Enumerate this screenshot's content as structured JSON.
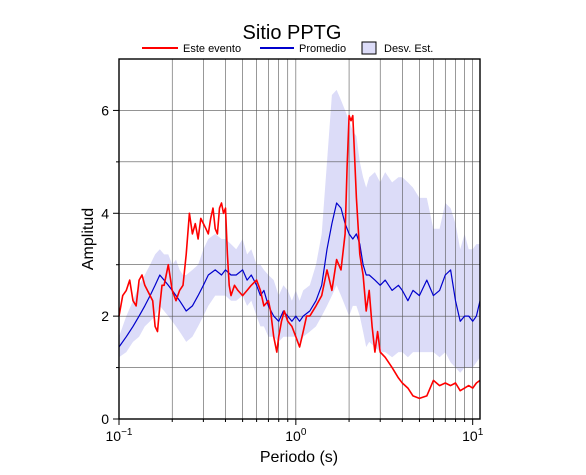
{
  "chart_data": {
    "type": "line",
    "title": "Sitio PPTG",
    "xlabel": "Periodo (s)",
    "ylabel": "Amplitud",
    "x_scale": "log",
    "xlim": [
      0.1,
      11
    ],
    "ylim": [
      0,
      7
    ],
    "grid": true,
    "legend_position": "top",
    "x_ticks": [
      {
        "value": 0.1,
        "base": "10",
        "exp": "−1"
      },
      {
        "value": 1,
        "base": "10",
        "exp": "0"
      },
      {
        "value": 10,
        "base": "10",
        "exp": "1"
      }
    ],
    "y_ticks": [
      0,
      2,
      4,
      6
    ],
    "legend": {
      "este": "Este evento",
      "promedio": "Promedio",
      "desv": "Desv. Est."
    },
    "colors": {
      "este": "#ff0000",
      "promedio": "#0000cc",
      "desv": "#dcdcf8",
      "grid": "#555555"
    },
    "series": [
      {
        "name": "Este evento",
        "x": [
          0.1,
          0.105,
          0.11,
          0.115,
          0.12,
          0.125,
          0.13,
          0.135,
          0.14,
          0.15,
          0.155,
          0.16,
          0.165,
          0.17,
          0.175,
          0.18,
          0.19,
          0.2,
          0.21,
          0.22,
          0.23,
          0.24,
          0.25,
          0.26,
          0.27,
          0.28,
          0.29,
          0.3,
          0.31,
          0.32,
          0.33,
          0.34,
          0.35,
          0.36,
          0.37,
          0.38,
          0.39,
          0.4,
          0.41,
          0.42,
          0.43,
          0.45,
          0.47,
          0.5,
          0.53,
          0.56,
          0.6,
          0.63,
          0.66,
          0.7,
          0.72,
          0.75,
          0.78,
          0.8,
          0.83,
          0.86,
          0.9,
          0.95,
          1.0,
          1.05,
          1.1,
          1.15,
          1.2,
          1.3,
          1.4,
          1.5,
          1.6,
          1.7,
          1.8,
          1.9,
          1.95,
          2.0,
          2.05,
          2.1,
          2.15,
          2.2,
          2.3,
          2.4,
          2.5,
          2.6,
          2.7,
          2.8,
          2.9,
          3.0,
          3.2,
          3.5,
          3.8,
          4.0,
          4.3,
          4.6,
          5.0,
          5.5,
          6.0,
          6.5,
          7.0,
          7.5,
          8.0,
          8.5,
          9.0,
          9.5,
          10.0,
          10.5,
          11.0
        ],
        "values": [
          2.0,
          2.4,
          2.5,
          2.7,
          2.3,
          2.2,
          2.7,
          2.8,
          2.6,
          2.4,
          2.3,
          1.8,
          1.7,
          2.2,
          2.6,
          2.6,
          3.0,
          2.5,
          2.3,
          2.5,
          2.6,
          3.2,
          4.0,
          3.6,
          3.8,
          3.5,
          3.9,
          3.8,
          3.7,
          3.6,
          3.9,
          4.1,
          3.7,
          3.6,
          4.1,
          4.2,
          4.0,
          4.1,
          3.2,
          2.6,
          2.4,
          2.6,
          2.5,
          2.4,
          2.5,
          2.6,
          2.7,
          2.5,
          2.2,
          2.3,
          2.1,
          1.6,
          1.3,
          1.6,
          1.9,
          2.1,
          1.9,
          1.8,
          1.6,
          1.4,
          1.7,
          2.0,
          2.0,
          2.2,
          2.4,
          2.9,
          2.5,
          3.1,
          2.9,
          3.6,
          4.9,
          5.9,
          5.8,
          5.9,
          5.1,
          4.3,
          3.2,
          2.8,
          2.1,
          2.5,
          1.8,
          1.3,
          1.7,
          1.3,
          1.2,
          1.0,
          0.8,
          0.7,
          0.6,
          0.45,
          0.4,
          0.45,
          0.75,
          0.65,
          0.7,
          0.65,
          0.7,
          0.55,
          0.6,
          0.65,
          0.6,
          0.7,
          0.75
        ]
      },
      {
        "name": "Promedio",
        "x": [
          0.1,
          0.11,
          0.12,
          0.13,
          0.14,
          0.15,
          0.16,
          0.17,
          0.18,
          0.19,
          0.2,
          0.21,
          0.22,
          0.23,
          0.24,
          0.26,
          0.28,
          0.3,
          0.32,
          0.35,
          0.38,
          0.4,
          0.43,
          0.46,
          0.5,
          0.53,
          0.56,
          0.6,
          0.63,
          0.66,
          0.7,
          0.75,
          0.8,
          0.85,
          0.9,
          0.95,
          1.0,
          1.05,
          1.1,
          1.2,
          1.3,
          1.4,
          1.5,
          1.6,
          1.7,
          1.8,
          1.9,
          2.0,
          2.1,
          2.2,
          2.3,
          2.4,
          2.5,
          2.6,
          2.8,
          3.0,
          3.2,
          3.5,
          3.8,
          4.0,
          4.3,
          4.6,
          5.0,
          5.5,
          6.0,
          6.5,
          7.0,
          7.5,
          8.0,
          8.5,
          9.0,
          9.5,
          10.0,
          10.5,
          11.0
        ],
        "values": [
          1.4,
          1.6,
          1.8,
          2.0,
          2.2,
          2.4,
          2.6,
          2.8,
          2.7,
          2.6,
          2.5,
          2.4,
          2.3,
          2.2,
          2.1,
          2.2,
          2.4,
          2.6,
          2.8,
          2.9,
          2.8,
          2.9,
          2.8,
          2.8,
          2.9,
          2.7,
          2.8,
          2.6,
          2.4,
          2.5,
          2.2,
          2.0,
          1.9,
          2.1,
          2.0,
          1.9,
          2.0,
          1.9,
          2.0,
          2.1,
          2.3,
          2.6,
          3.3,
          3.8,
          4.2,
          4.1,
          3.8,
          3.6,
          3.5,
          3.6,
          3.4,
          3.0,
          2.8,
          2.8,
          2.7,
          2.6,
          2.7,
          2.5,
          2.6,
          2.5,
          2.3,
          2.5,
          2.4,
          2.7,
          2.4,
          2.5,
          2.8,
          2.9,
          2.3,
          1.9,
          2.0,
          2.0,
          1.9,
          2.0,
          2.3
        ]
      }
    ],
    "band": {
      "name": "Desv. Est.",
      "x": [
        0.1,
        0.11,
        0.12,
        0.13,
        0.14,
        0.15,
        0.16,
        0.17,
        0.18,
        0.19,
        0.2,
        0.21,
        0.22,
        0.23,
        0.24,
        0.26,
        0.28,
        0.3,
        0.32,
        0.35,
        0.38,
        0.4,
        0.43,
        0.46,
        0.5,
        0.53,
        0.56,
        0.6,
        0.63,
        0.66,
        0.7,
        0.75,
        0.8,
        0.85,
        0.9,
        0.95,
        1.0,
        1.05,
        1.1,
        1.2,
        1.3,
        1.4,
        1.5,
        1.6,
        1.7,
        1.8,
        1.9,
        2.0,
        2.1,
        2.2,
        2.3,
        2.4,
        2.5,
        2.6,
        2.8,
        3.0,
        3.2,
        3.5,
        3.8,
        4.0,
        4.3,
        4.6,
        5.0,
        5.5,
        6.0,
        6.5,
        7.0,
        7.5,
        8.0,
        8.5,
        9.0,
        9.5,
        10.0,
        10.5,
        11.0
      ],
      "lower": [
        1.2,
        1.3,
        1.5,
        1.6,
        1.8,
        1.9,
        2.0,
        2.2,
        2.1,
        2.0,
        1.9,
        1.8,
        1.7,
        1.6,
        1.5,
        1.6,
        1.8,
        2.0,
        2.2,
        2.4,
        2.4,
        2.4,
        2.3,
        2.3,
        2.4,
        2.2,
        2.3,
        2.0,
        1.8,
        1.8,
        1.6,
        1.6,
        1.5,
        1.6,
        1.6,
        1.6,
        1.6,
        1.4,
        1.6,
        1.7,
        1.8,
        2.0,
        2.2,
        2.4,
        2.6,
        2.4,
        2.2,
        2.0,
        2.2,
        2.2,
        2.0,
        1.7,
        1.4,
        1.5,
        1.4,
        1.3,
        1.3,
        1.2,
        1.3,
        1.3,
        1.2,
        1.3,
        1.3,
        1.3,
        1.3,
        1.2,
        1.3,
        1.1,
        1.0,
        0.9,
        1.0,
        1.0,
        1.0,
        1.1,
        1.2
      ],
      "upper": [
        1.6,
        2.0,
        2.3,
        2.6,
        2.8,
        3.0,
        3.2,
        3.3,
        3.2,
        3.2,
        3.0,
        3.1,
        2.9,
        2.8,
        2.8,
        2.9,
        3.0,
        3.3,
        3.5,
        3.6,
        3.5,
        3.5,
        3.4,
        3.3,
        3.5,
        3.2,
        3.3,
        3.0,
        3.0,
        2.9,
        2.8,
        2.7,
        2.4,
        2.6,
        2.5,
        2.3,
        2.5,
        2.3,
        2.5,
        2.6,
        3.0,
        3.6,
        5.0,
        6.3,
        6.4,
        6.2,
        6.0,
        5.8,
        5.6,
        5.5,
        5.0,
        4.7,
        4.5,
        4.7,
        4.8,
        4.6,
        4.8,
        4.6,
        4.7,
        4.7,
        4.6,
        4.5,
        4.3,
        4.3,
        3.7,
        3.7,
        4.2,
        4.1,
        3.8,
        3.3,
        3.6,
        3.3,
        3.3,
        3.4,
        3.4
      ]
    }
  }
}
